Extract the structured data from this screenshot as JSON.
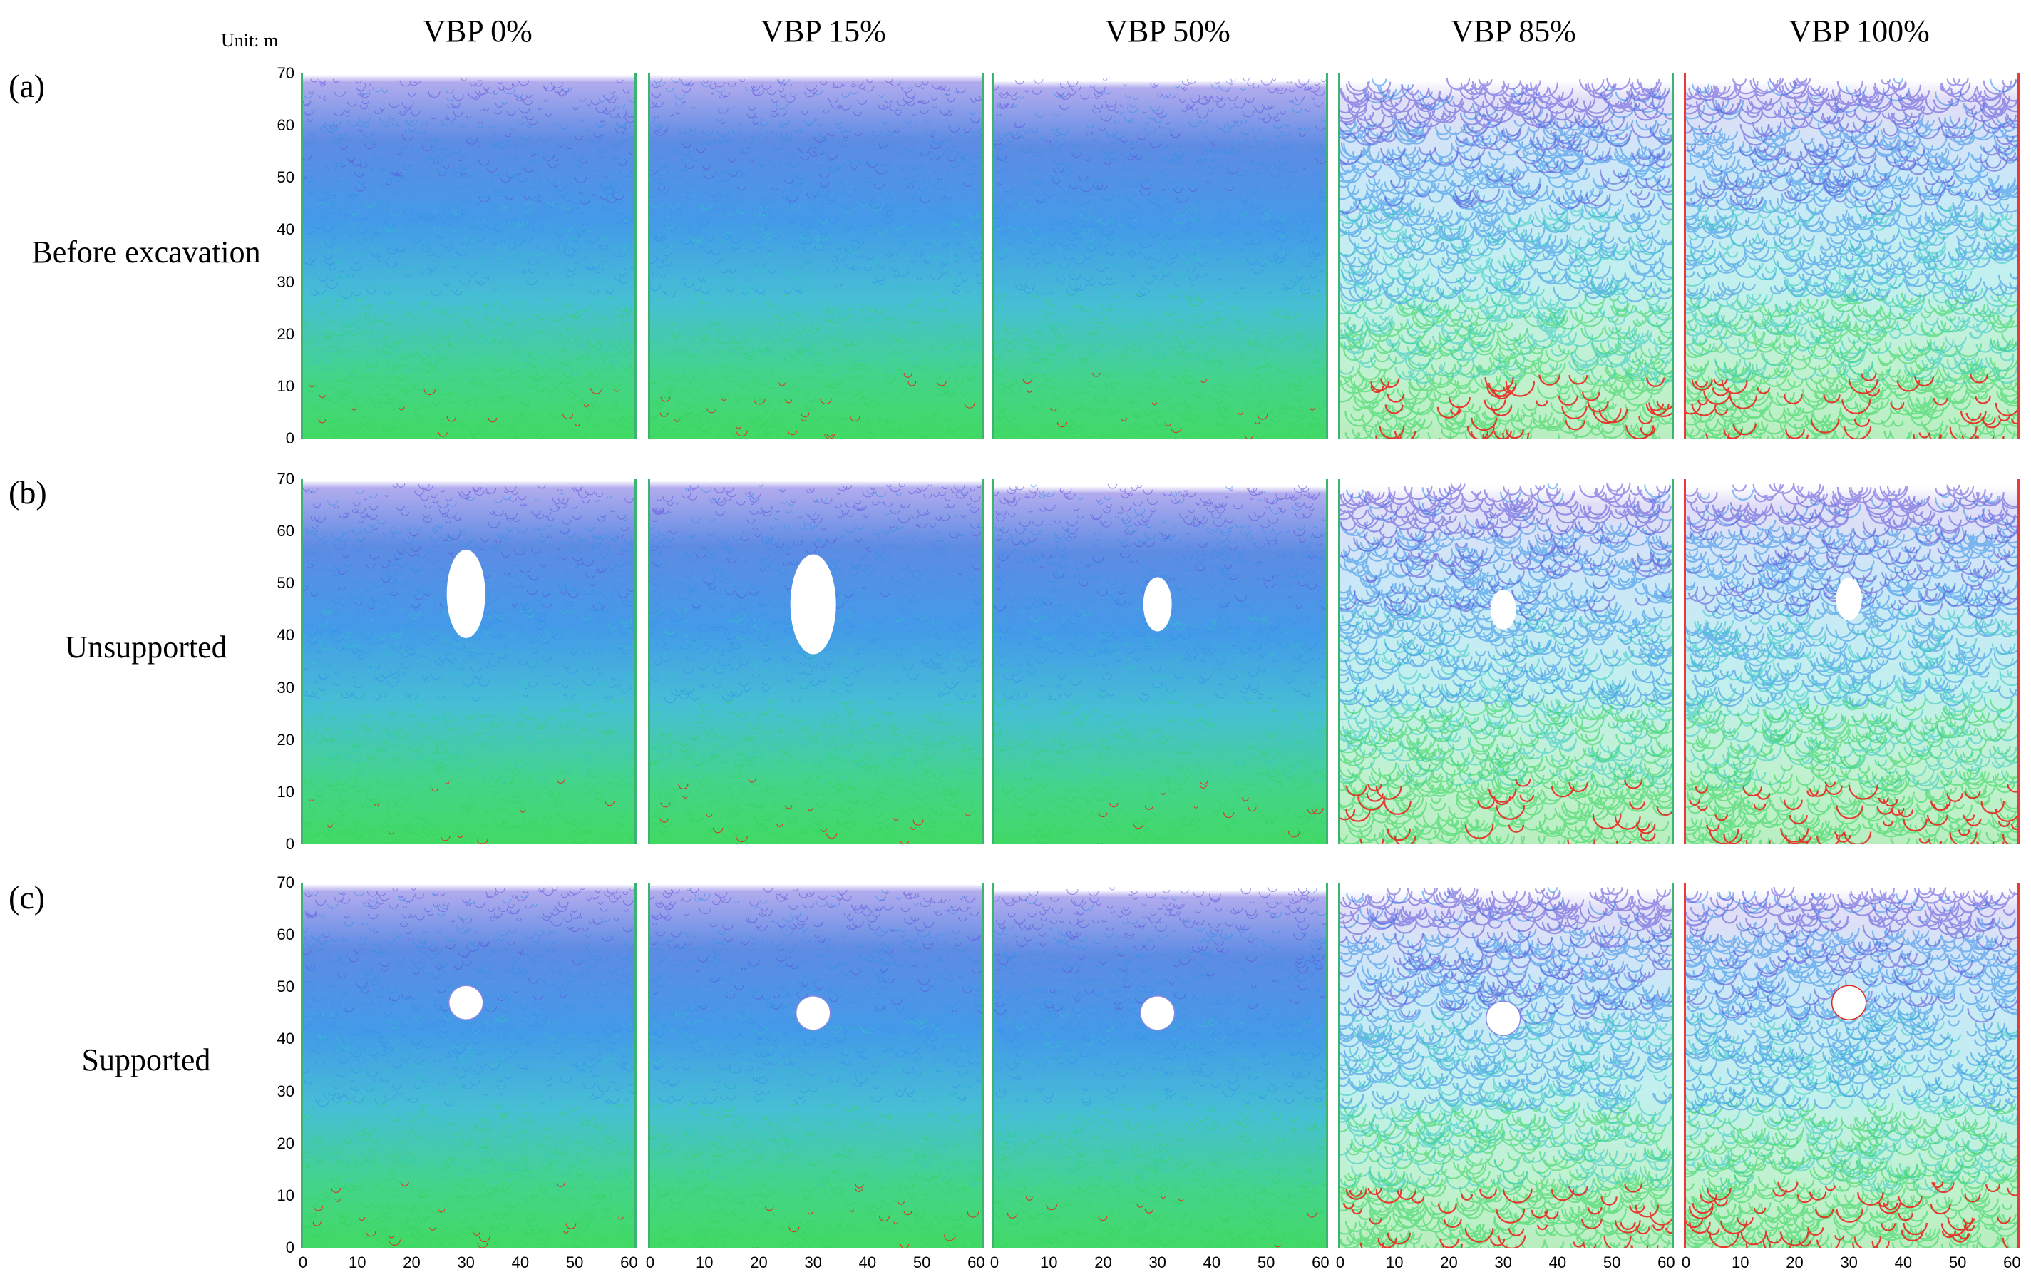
{
  "figure": {
    "unit_label": "Unit: m",
    "columns": [
      {
        "title": "VBP 0%",
        "vbp": 0
      },
      {
        "title": "VBP 15%",
        "vbp": 15
      },
      {
        "title": "VBP 50%",
        "vbp": 50
      },
      {
        "title": "VBP 85%",
        "vbp": 85
      },
      {
        "title": "VBP 100%",
        "vbp": 100
      }
    ],
    "rows": [
      {
        "tag": "(a)",
        "label": "Before excavation",
        "cavity": "none"
      },
      {
        "tag": "(b)",
        "label": "Unsupported",
        "cavity": "collapsed"
      },
      {
        "tag": "(c)",
        "label": "Supported",
        "cavity": "circular"
      }
    ],
    "y_ticks": [
      "70",
      "60",
      "50",
      "40",
      "30",
      "20",
      "10",
      "0"
    ],
    "x_ticks": [
      "0",
      "10",
      "20",
      "30",
      "40",
      "50",
      "60"
    ],
    "colors": {
      "top": "#5a4fd8",
      "upper": "#2f8ee8",
      "middle": "#33c9c2",
      "lower": "#2fd45a",
      "hot": "#e8281e",
      "blockbar_left": "#3cb371",
      "blockbar_red": "#e83a3a"
    }
  }
}
